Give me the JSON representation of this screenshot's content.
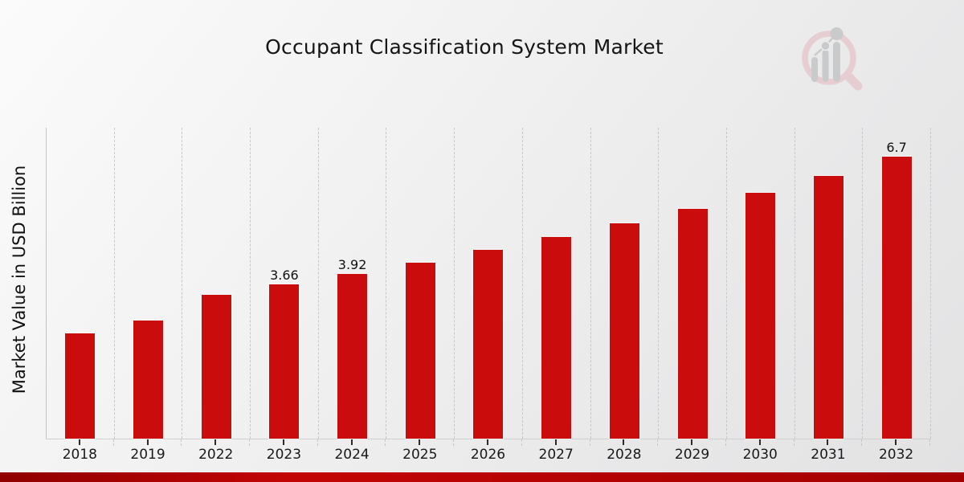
{
  "title": "Occupant Classification System Market",
  "y_axis_label": "Market Value in USD Billion",
  "icons": {
    "logo": "bar-chart-magnifier-watermark-logo"
  },
  "colors": {
    "bar": "#cb0c0c",
    "grid": "#c7c7c7",
    "title_text": "#151515",
    "bottom_strip_from": "#8f0000",
    "bottom_strip_mid": "#c30404",
    "bottom_strip_to": "#a30101",
    "logo_ring": "#e6cdd1",
    "logo_gray": "#c9cacc"
  },
  "chart_data": {
    "type": "bar",
    "title": "Occupant Classification System Market",
    "xlabel": "",
    "ylabel": "Market Value in USD Billion",
    "categories": [
      "2018",
      "2019",
      "2022",
      "2023",
      "2024",
      "2025",
      "2026",
      "2027",
      "2028",
      "2029",
      "2030",
      "2031",
      "2032"
    ],
    "values": [
      2.5,
      2.8,
      3.42,
      3.66,
      3.92,
      4.19,
      4.48,
      4.79,
      5.12,
      5.47,
      5.85,
      6.25,
      6.7
    ],
    "bar_labels": [
      null,
      null,
      null,
      "3.66",
      "3.92",
      null,
      null,
      null,
      null,
      null,
      null,
      null,
      "6.7"
    ],
    "ylim": [
      0,
      7.39
    ],
    "grid": "vertical-dashed",
    "legend": "none",
    "bar_color": "#cb0c0c"
  }
}
